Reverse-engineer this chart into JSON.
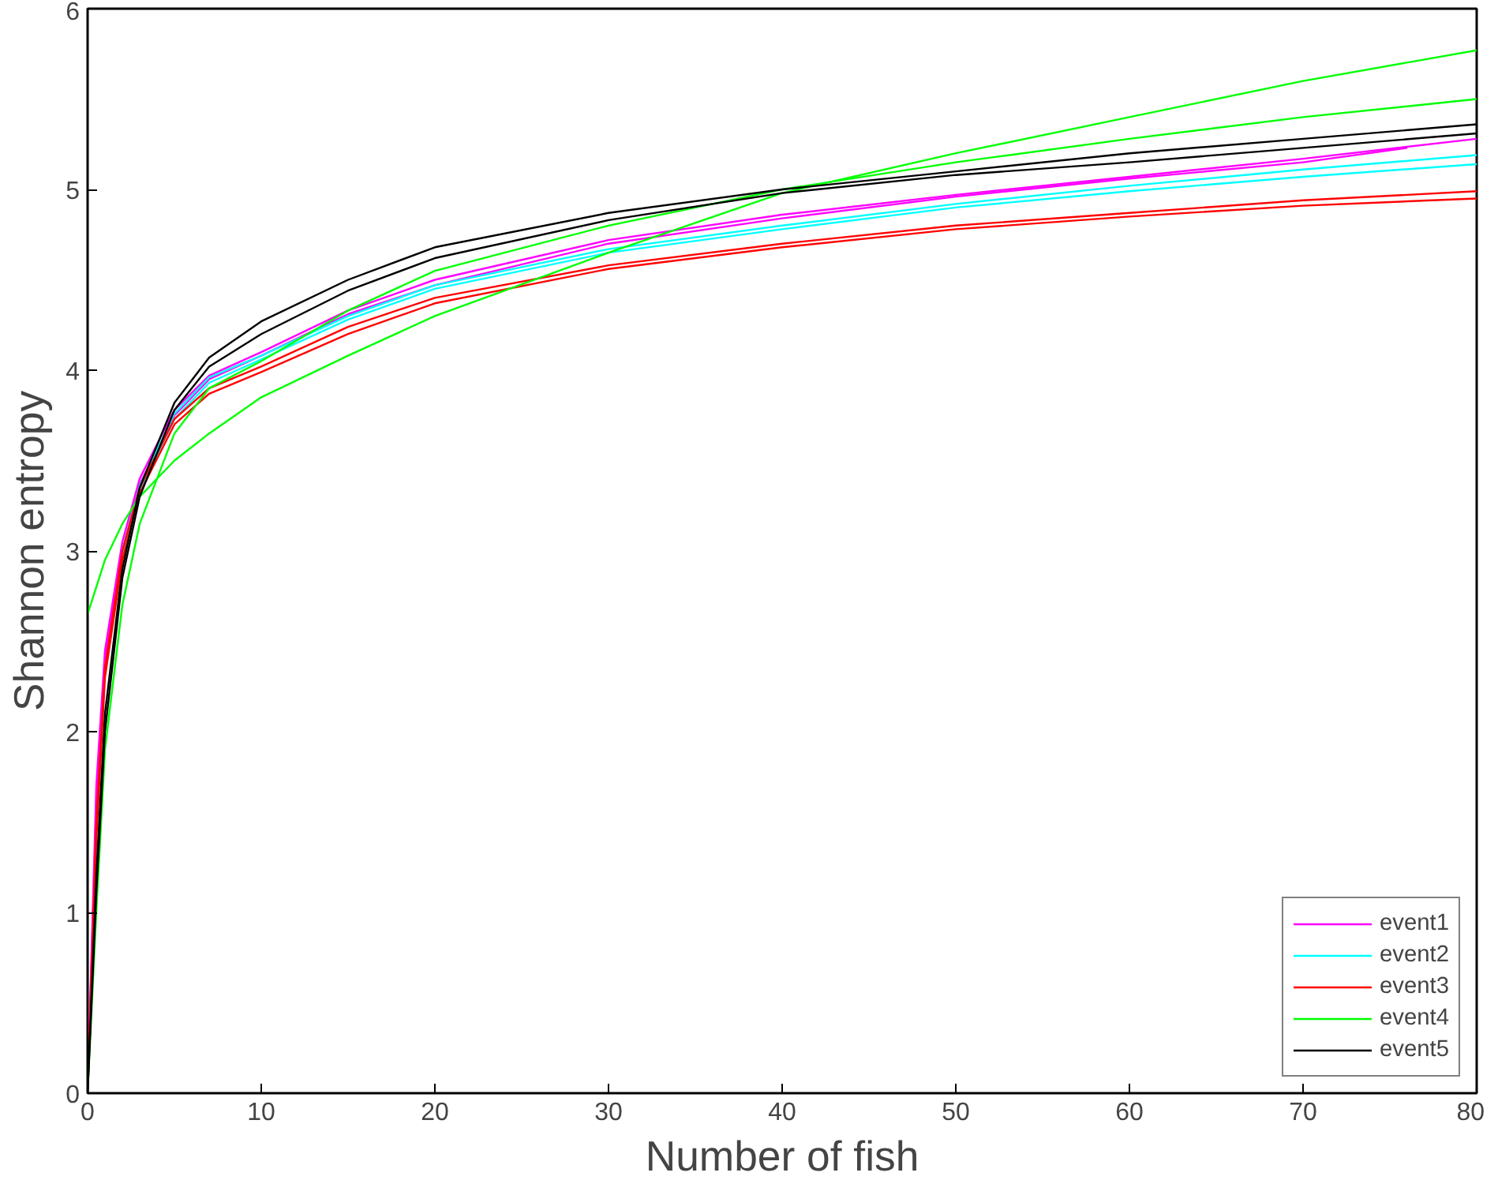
{
  "chart_data": {
    "type": "line",
    "xlabel": "Number of fish",
    "ylabel": "Shannon entropy",
    "x": [
      0,
      0.5,
      1,
      2,
      3,
      5,
      7,
      10,
      15,
      20,
      30,
      40,
      50,
      60,
      70,
      80
    ],
    "xlim": [
      0,
      80
    ],
    "xticks": [
      0,
      10,
      20,
      30,
      40,
      50,
      60,
      70,
      80
    ],
    "ylim": [
      0,
      6
    ],
    "yticks": [
      0,
      1,
      2,
      3,
      4,
      5,
      6
    ],
    "grid": false,
    "legend": "bottom right",
    "line_style": "solid",
    "series": [
      {
        "name": "event1",
        "color": "#ff00ff",
        "values": [
          0,
          1.7,
          2.45,
          3.05,
          3.4,
          3.78,
          3.97,
          4.1,
          4.33,
          4.5,
          4.72,
          4.86,
          4.97,
          5.07,
          5.17,
          5.28
        ]
      },
      {
        "color": "#ff00ff",
        "x": [
          0,
          0.5,
          1,
          2,
          3,
          5,
          7,
          10,
          15,
          20,
          30,
          40,
          50,
          60,
          70,
          76
        ],
        "values": [
          0,
          1.6,
          2.4,
          3.0,
          3.37,
          3.75,
          3.95,
          4.08,
          4.31,
          4.47,
          4.7,
          4.84,
          4.96,
          5.06,
          5.15,
          5.23
        ]
      },
      {
        "name": "event2",
        "color": "#00ffff",
        "values": [
          null,
          null,
          null,
          3.0,
          3.36,
          3.76,
          3.96,
          4.08,
          4.3,
          4.47,
          4.67,
          4.8,
          4.92,
          5.02,
          5.11,
          5.19
        ]
      },
      {
        "color": "#00ffff",
        "values": [
          null,
          null,
          null,
          2.97,
          3.33,
          3.73,
          3.93,
          4.06,
          4.28,
          4.45,
          4.65,
          4.78,
          4.9,
          4.99,
          5.07,
          5.14
        ]
      },
      {
        "name": "event3",
        "color": "#ff0000",
        "values": [
          0,
          1.5,
          2.35,
          3.0,
          3.35,
          3.73,
          3.9,
          4.02,
          4.24,
          4.4,
          4.58,
          4.7,
          4.8,
          4.87,
          4.94,
          4.99
        ]
      },
      {
        "color": "#ff0000",
        "values": [
          0,
          1.4,
          2.3,
          2.95,
          3.32,
          3.7,
          3.87,
          3.99,
          4.2,
          4.37,
          4.56,
          4.68,
          4.78,
          4.85,
          4.91,
          4.95
        ]
      },
      {
        "name": "event4",
        "color": "#00ff00",
        "values": [
          2.65,
          2.8,
          2.95,
          3.15,
          3.3,
          3.5,
          3.65,
          3.85,
          4.08,
          4.3,
          4.65,
          4.98,
          5.2,
          5.4,
          5.6,
          5.77
        ]
      },
      {
        "color": "#00ff00",
        "values": [
          0,
          1.0,
          1.9,
          2.7,
          3.15,
          3.65,
          3.9,
          4.05,
          4.33,
          4.55,
          4.8,
          5.0,
          5.15,
          5.28,
          5.4,
          5.5
        ]
      },
      {
        "name": "event5",
        "color": "#000000",
        "values": [
          0,
          1.2,
          2.1,
          2.9,
          3.35,
          3.82,
          4.07,
          4.27,
          4.5,
          4.68,
          4.87,
          5.0,
          5.1,
          5.2,
          5.28,
          5.36
        ]
      },
      {
        "color": "#000000",
        "values": [
          0,
          1.1,
          2.0,
          2.85,
          3.3,
          3.78,
          4.02,
          4.2,
          4.44,
          4.62,
          4.83,
          4.98,
          5.08,
          5.15,
          5.23,
          5.31
        ]
      }
    ]
  }
}
